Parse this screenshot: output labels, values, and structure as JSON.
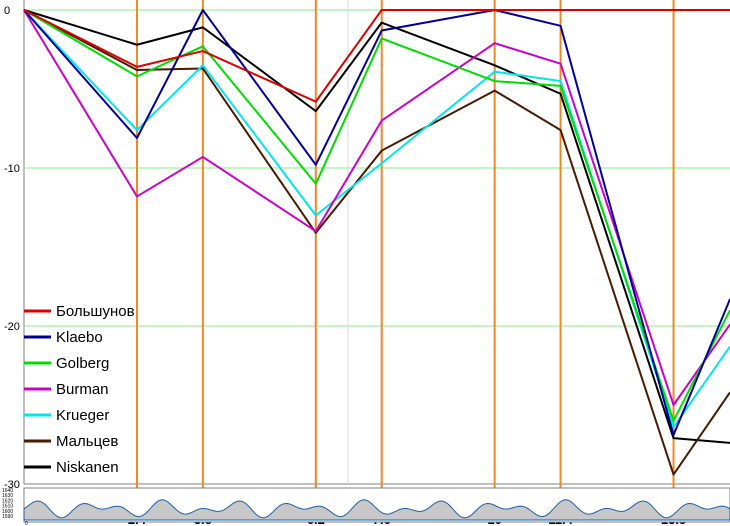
{
  "chart_data": {
    "type": "line",
    "title": "",
    "xlabel": "",
    "ylabel": "",
    "xlim": [
      0,
      15
    ],
    "ylim": [
      -30,
      0
    ],
    "yticks": [
      0,
      -10,
      -20,
      -30
    ],
    "checkpoints": [
      2.4,
      3.8,
      6.2,
      7.6,
      10,
      11.4,
      13.8
    ],
    "x": [
      0,
      2.4,
      3.8,
      6.2,
      7.6,
      10,
      11.4,
      13.8,
      15
    ],
    "series": [
      {
        "name": "Большунов",
        "color": "#dd0000",
        "values": [
          0,
          -3.6,
          -2.6,
          -5.8,
          0,
          0,
          0,
          0,
          0
        ]
      },
      {
        "name": "Klaebo",
        "color": "#000099",
        "values": [
          0,
          -8.1,
          0,
          -9.8,
          -1.3,
          0,
          -1.0,
          -26.9,
          -18.3
        ]
      },
      {
        "name": "Golberg",
        "color": "#00dd00",
        "values": [
          0,
          -4.2,
          -2.3,
          -11.0,
          -1.8,
          -4.5,
          -4.8,
          -26.0,
          -19.0
        ]
      },
      {
        "name": "Burman",
        "color": "#cc00cc",
        "values": [
          0,
          -11.8,
          -9.3,
          -14.0,
          -7.0,
          -2.1,
          -3.4,
          -25.0,
          -19.9
        ]
      },
      {
        "name": "Krueger",
        "color": "#00e5ee",
        "values": [
          0,
          -7.6,
          -3.5,
          -13.0,
          -9.7,
          -3.9,
          -4.5,
          -26.4,
          -21.3
        ]
      },
      {
        "name": "Мальцев",
        "color": "#4a1a00",
        "values": [
          0,
          -3.8,
          -3.7,
          -14.1,
          -8.9,
          -5.1,
          -7.6,
          -29.4,
          -24.2
        ]
      },
      {
        "name": "Niskanen",
        "color": "#000000",
        "values": [
          0,
          -2.2,
          -1.1,
          -6.4,
          -0.8,
          -3.5,
          -5.3,
          -27.1,
          -27.4
        ]
      }
    ],
    "legend_position": "bottom-left",
    "grid": true,
    "elevation_profile": {
      "y_ticks": [
        "1640",
        "1630",
        "1620",
        "1610",
        "1600",
        "1590"
      ],
      "x_tick": "0"
    }
  }
}
